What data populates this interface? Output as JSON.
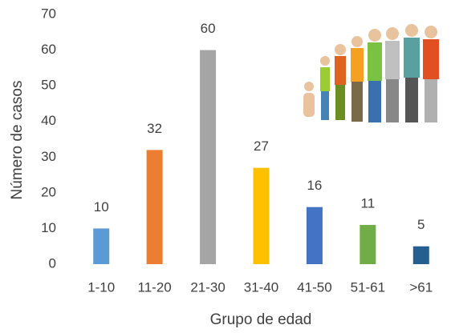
{
  "chart_data": {
    "type": "bar",
    "x_label": "Grupo de edad",
    "y_label": "Número de casos",
    "categories": [
      "1-10",
      "11-20",
      "21-30",
      "31-40",
      "41-50",
      "51-61",
      ">61"
    ],
    "values": [
      10,
      32,
      60,
      27,
      16,
      11,
      5
    ],
    "colors": [
      "#5b9bd5",
      "#ed7d31",
      "#a5a5a5",
      "#ffc000",
      "#4472c4",
      "#70ad47",
      "#255e91"
    ],
    "ylim": [
      0,
      70
    ],
    "yticks": [
      0,
      10,
      20,
      30,
      40,
      50,
      60,
      70
    ],
    "grid": false
  }
}
